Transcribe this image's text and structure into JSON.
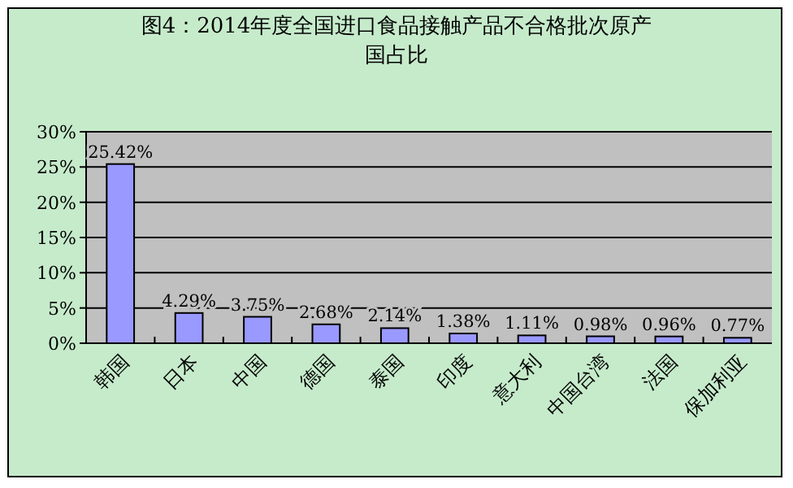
{
  "chart_data": {
    "type": "bar",
    "title": "图4：2014年度全国进口食品接触产品不合格批次原产国占比",
    "categories": [
      "韩国",
      "日本",
      "中国",
      "德国",
      "泰国",
      "印度",
      "意大利",
      "中国台湾",
      "法国",
      "保加利亚"
    ],
    "values": [
      25.42,
      4.29,
      3.75,
      2.68,
      2.14,
      1.38,
      1.11,
      0.98,
      0.96,
      0.77
    ],
    "value_labels": [
      "25.42%",
      "4.29%",
      "3.75%",
      "2.68%",
      "2.14%",
      "1.38%",
      "1.11%",
      "0.98%",
      "0.96%",
      "0.77%"
    ],
    "color": "#9999ff",
    "ylim": [
      0,
      30
    ],
    "yticks": [
      {
        "value": 0,
        "label": "0%"
      },
      {
        "value": 5,
        "label": "5%"
      },
      {
        "value": 10,
        "label": "10%"
      },
      {
        "value": 15,
        "label": "15%"
      },
      {
        "value": 20,
        "label": "20%"
      },
      {
        "value": 25,
        "label": "25%"
      },
      {
        "value": 30,
        "label": "30%"
      }
    ],
    "grid": "y"
  }
}
